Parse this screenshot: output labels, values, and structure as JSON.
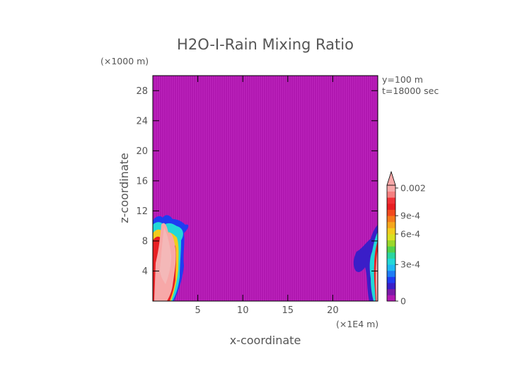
{
  "chart_data": {
    "type": "heatmap",
    "title": "H2O-I-Rain Mixing Ratio",
    "xlabel": "x-coordinate",
    "ylabel": "z-coordinate",
    "x_unit": "(×1E4 m)",
    "y_unit": "(×1000 m)",
    "annotations": [
      "y=100 m",
      "t=18000 sec"
    ],
    "xlim": [
      0,
      25
    ],
    "ylim": [
      0,
      30
    ],
    "x_ticks": [
      5,
      10,
      15,
      20
    ],
    "y_ticks": [
      4,
      8,
      12,
      16,
      20,
      24,
      28
    ],
    "background_value": 0,
    "regions": [
      {
        "name": "left-rain-plume",
        "x_range": [
          0,
          4
        ],
        "z_range": [
          0,
          11.5
        ],
        "max_value": 0.002
      },
      {
        "name": "right-rain-plume",
        "x_range": [
          22.5,
          25
        ],
        "z_range": [
          0,
          10
        ],
        "max_value": 0.002
      }
    ],
    "colorbar": {
      "labels": [
        "0",
        "3e-4",
        "6e-4",
        "9e-4",
        "0.002"
      ],
      "levels": [
        {
          "value": 0,
          "color": "#b218b2"
        },
        {
          "value": 5e-05,
          "color": "#7c1aa8"
        },
        {
          "value": 0.0001,
          "color": "#3a1ec8"
        },
        {
          "value": 0.00015,
          "color": "#1f3cf2"
        },
        {
          "value": 0.0002,
          "color": "#1f7cf5"
        },
        {
          "value": 0.00025,
          "color": "#1fb8f2"
        },
        {
          "value": 0.0003,
          "color": "#22d8d8"
        },
        {
          "value": 0.00035,
          "color": "#2ad6a0"
        },
        {
          "value": 0.0004,
          "color": "#52d24a"
        },
        {
          "value": 0.00045,
          "color": "#9ad82a"
        },
        {
          "value": 0.0005,
          "color": "#d8e022"
        },
        {
          "value": 0.0006,
          "color": "#f2cc1e"
        },
        {
          "value": 0.0007,
          "color": "#f5a61c"
        },
        {
          "value": 0.0008,
          "color": "#f57a1c"
        },
        {
          "value": 0.0009,
          "color": "#f24a1e"
        },
        {
          "value": 0.001,
          "color": "#e81e22"
        },
        {
          "value": 0.0012,
          "color": "#f03036"
        },
        {
          "value": 0.0015,
          "color": "#f58080"
        },
        {
          "value": 0.002,
          "color": "#f7a8a8"
        }
      ]
    }
  }
}
